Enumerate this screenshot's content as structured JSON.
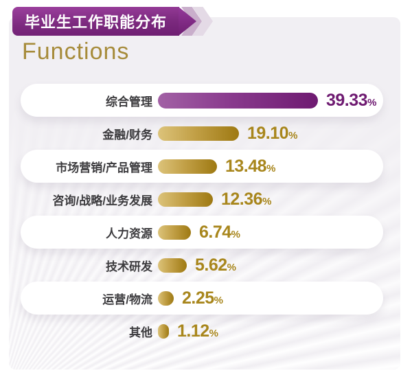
{
  "header": {
    "banner_title": "毕业生工作职能分布",
    "subtitle": "Functions"
  },
  "colors": {
    "page_background": "#ffffff",
    "card_background": "#f1eff3",
    "banner_purple_top": "#9c409e",
    "banner_purple_bottom": "#6e1e71",
    "chevron_1": "#c9aecb",
    "chevron_2": "#e4dae6",
    "subtitle_gold": "#a68b3a",
    "label_text": "#3c3b3e",
    "purple_bar_from": "#a261a5",
    "purple_bar_to": "#6e1a71",
    "purple_value_text": "#6e1a71",
    "gold_bar_from": "#dcc37a",
    "gold_bar_to": "#9e7912",
    "gold_value_text": "#a8861c",
    "pill_background": "#ffffff"
  },
  "chart_data": {
    "type": "bar",
    "orientation": "horizontal",
    "title": "毕业生工作职能分布",
    "subtitle": "Functions",
    "unit": "%",
    "xlim": [
      0,
      40
    ],
    "grid": false,
    "legend": false,
    "value_label_position": "end-of-bar",
    "highlight_first_row_color": "purple",
    "other_rows_color": "gold",
    "alternating_white_pill_rows": [
      0,
      2,
      4,
      6
    ],
    "categories": [
      "综合管理",
      "金融/财务",
      "市场营销/产品管理",
      "咨询/战略/业务发展",
      "人力资源",
      "技术研发",
      "运营/物流",
      "其他"
    ],
    "values": [
      39.33,
      19.1,
      13.48,
      12.36,
      6.74,
      5.62,
      2.25,
      1.12
    ],
    "value_labels": [
      "39.33",
      "19.10",
      "13.48",
      "12.36",
      "6.74",
      "5.62",
      "2.25",
      "1.12"
    ]
  }
}
